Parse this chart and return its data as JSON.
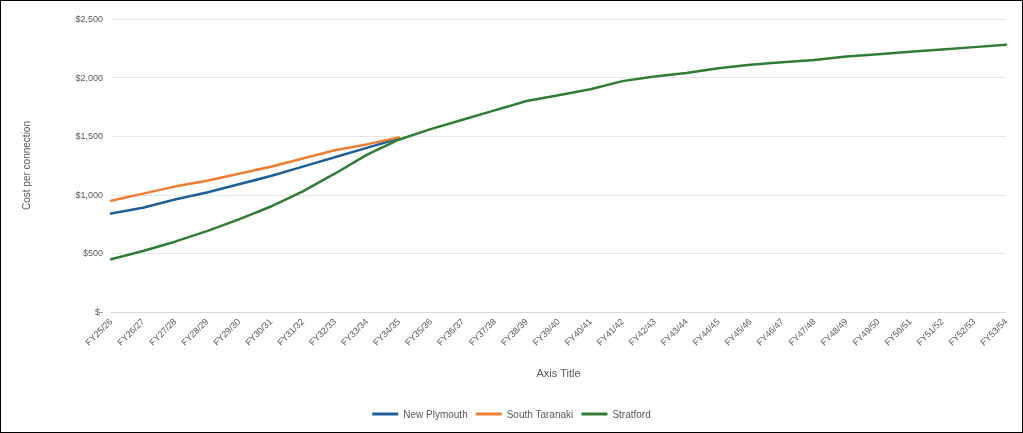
{
  "chart_data": {
    "type": "line",
    "xlabel": "Axis Title",
    "ylabel": "Cost per connection",
    "categories": [
      "FY25/26",
      "FY26/27",
      "FY27/28",
      "FY28/29",
      "FY29/30",
      "FY30/31",
      "FY31/32",
      "FY32/33",
      "FY33/34",
      "FY34/35",
      "FY35/36",
      "FY36/37",
      "FY37/38",
      "FY38/39",
      "FY39/40",
      "FY40/41",
      "FY41/42",
      "FY42/43",
      "FY43/44",
      "FY44/45",
      "FY45/46",
      "FY46/47",
      "FY47/48",
      "FY48/49",
      "FY49/50",
      "FY50/51",
      "FY51/52",
      "FY52/53",
      "FY53/54"
    ],
    "series": [
      {
        "name": "New Plymouth",
        "color": "#1f5f99",
        "values": [
          840,
          890,
          960,
          1020,
          1090,
          1160,
          1240,
          1320,
          1400,
          1480,
          null,
          null,
          null,
          null,
          null,
          null,
          null,
          null,
          null,
          null,
          null,
          null,
          null,
          null,
          null,
          null,
          null,
          null,
          null
        ]
      },
      {
        "name": "South Taranaki",
        "color": "#ed7d31",
        "values": [
          950,
          1010,
          1070,
          1120,
          1180,
          1240,
          1310,
          1380,
          1430,
          1490,
          null,
          null,
          null,
          null,
          null,
          null,
          null,
          null,
          null,
          null,
          null,
          null,
          null,
          null,
          null,
          null,
          null,
          null,
          null
        ]
      },
      {
        "name": "Stratford",
        "color": "#2e7d32",
        "values": [
          450,
          520,
          600,
          690,
          790,
          900,
          1030,
          1180,
          1340,
          1470,
          1560,
          1640,
          1720,
          1800,
          1850,
          1900,
          1970,
          2010,
          2040,
          2080,
          2110,
          2130,
          2150,
          2180,
          2200,
          2220,
          2240,
          2260,
          2280
        ]
      }
    ],
    "ylim": [
      0,
      2500
    ],
    "yticks": [
      {
        "value": 0,
        "label": "$-"
      },
      {
        "value": 500,
        "label": "$500"
      },
      {
        "value": 1000,
        "label": "$1,000"
      },
      {
        "value": 1500,
        "label": "$1,500"
      },
      {
        "value": 2000,
        "label": "$2,000"
      },
      {
        "value": 2500,
        "label": "$2,500"
      }
    ],
    "grid": "y",
    "legend": "bottom",
    "marker": "none",
    "line_style": "solid"
  }
}
